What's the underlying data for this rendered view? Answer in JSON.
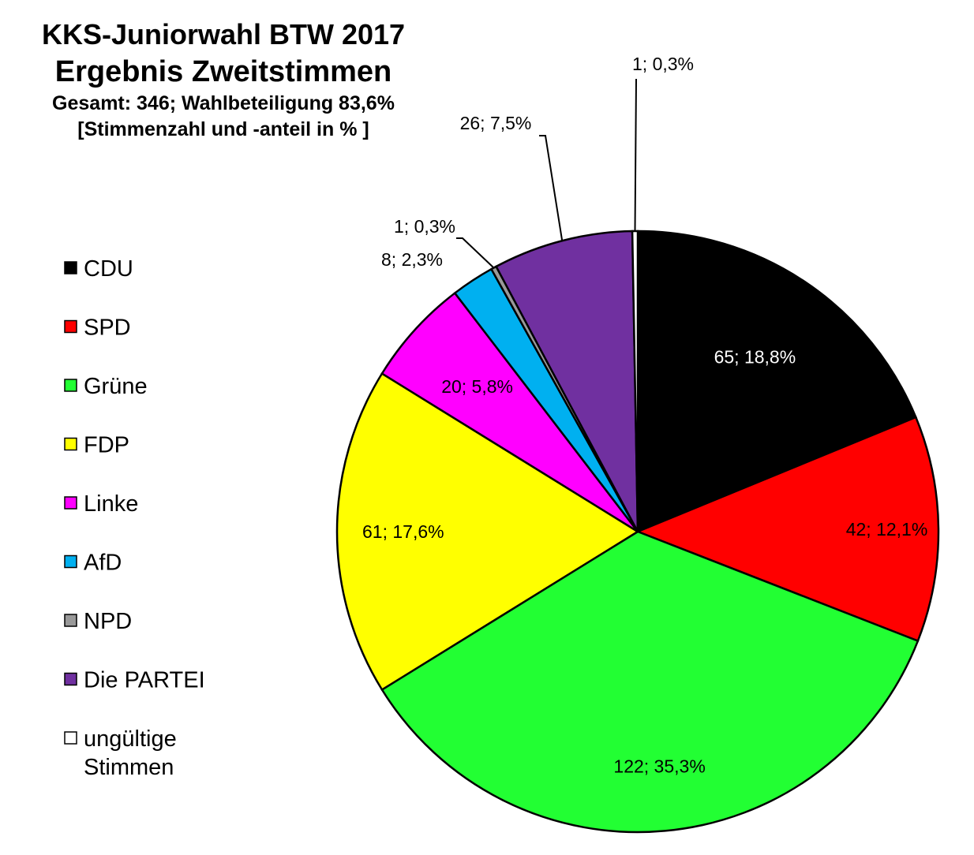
{
  "chart_data": {
    "type": "pie",
    "title": "KKS-Juniorwahl BTW 2017",
    "subtitle": "Ergebnis Zweitstimmen",
    "info_lines": [
      "Gesamt: 346; Wahlbeteiligung 83,6%",
      "[Stimmenzahl und -anteil in % ]"
    ],
    "total": 346,
    "legend_position": "left",
    "slices": [
      {
        "name": "CDU",
        "value": 65,
        "percent": 18.8,
        "label": "65; 18,8%",
        "color": "#000000",
        "label_color": "#ffffff"
      },
      {
        "name": "SPD",
        "value": 42,
        "percent": 12.1,
        "label": "42; 12,1%",
        "color": "#ff0000",
        "label_color": "#000000"
      },
      {
        "name": "Grüne",
        "value": 122,
        "percent": 35.3,
        "label": "122; 35,3%",
        "color": "#22ff33",
        "label_color": "#000000"
      },
      {
        "name": "FDP",
        "value": 61,
        "percent": 17.6,
        "label": "61; 17,6%",
        "color": "#ffff00",
        "label_color": "#000000"
      },
      {
        "name": "Linke",
        "value": 20,
        "percent": 5.8,
        "label": "20; 5,8%",
        "color": "#ff00ff",
        "label_color": "#000000"
      },
      {
        "name": "AfD",
        "value": 8,
        "percent": 2.3,
        "label": "8; 2,3%",
        "color": "#00b0f0",
        "label_color": "#000000"
      },
      {
        "name": "NPD",
        "value": 1,
        "percent": 0.3,
        "label": "1; 0,3%",
        "color": "#999999",
        "label_color": "#000000"
      },
      {
        "name": "Die PARTEI",
        "value": 26,
        "percent": 7.5,
        "label": "26; 7,5%",
        "color": "#7030a0",
        "label_color": "#000000"
      },
      {
        "name": "ungültige Stimmen",
        "legend_lines": [
          "ungültige",
          "Stimmen"
        ],
        "value": 1,
        "percent": 0.3,
        "label": "1; 0,3%",
        "color": "#ffffff",
        "label_color": "#000000"
      }
    ]
  }
}
